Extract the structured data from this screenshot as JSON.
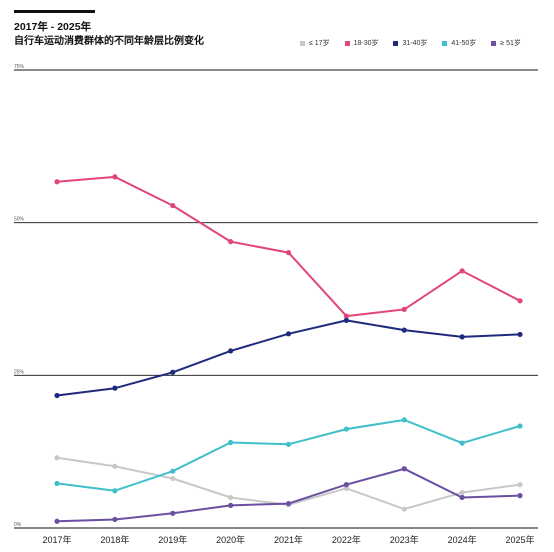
{
  "header": {
    "title": "2017年 - 2025年",
    "subtitle": "自行车运动消费群体的不同年龄层比例变化"
  },
  "chart_data": {
    "type": "line",
    "title": "2017年 - 2025年",
    "subtitle": "自行车运动消费群体的不同年龄层比例变化",
    "xlabel": "",
    "ylabel": "",
    "categories": [
      "2017年",
      "2018年",
      "2019年",
      "2020年",
      "2021年",
      "2022年",
      "2023年",
      "2024年",
      "2025年"
    ],
    "yticks": [
      0,
      25,
      50,
      75
    ],
    "ytick_labels": [
      "0%",
      "25%",
      "50%",
      "75%"
    ],
    "ylim": [
      0,
      75
    ],
    "grid": true,
    "legend_position": "top-right",
    "series": [
      {
        "name": "≤ 17岁",
        "color": "#c8c8c8",
        "values": [
          11.5,
          10.1,
          8.1,
          5.0,
          3.8,
          6.5,
          3.1,
          5.8,
          7.1
        ]
      },
      {
        "name": "18-30岁",
        "color": "#e0467c",
        "values": [
          56.7,
          57.5,
          52.8,
          46.9,
          45.1,
          34.7,
          35.8,
          42.1,
          37.2
        ]
      },
      {
        "name": "31-40岁",
        "color": "#1f2a7c",
        "values": [
          21.7,
          22.9,
          25.5,
          29.0,
          31.8,
          34.0,
          32.4,
          31.3,
          31.7
        ]
      },
      {
        "name": "41-50岁",
        "color": "#3fbfc9",
        "values": [
          7.3,
          6.1,
          9.3,
          14.0,
          13.7,
          16.2,
          17.7,
          13.9,
          16.7
        ]
      },
      {
        "name": "≥ 51岁",
        "color": "#6b4fa0",
        "values": [
          1.1,
          1.4,
          2.4,
          3.7,
          4.0,
          7.1,
          9.7,
          5.0,
          5.3
        ]
      }
    ]
  }
}
